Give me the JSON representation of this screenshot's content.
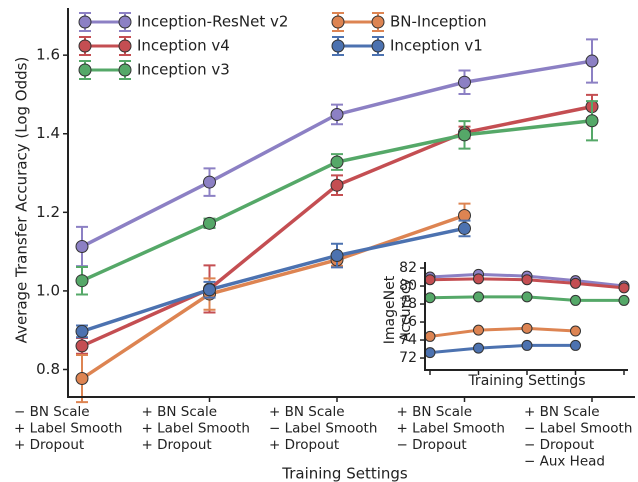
{
  "chart_data": [
    {
      "type": "line",
      "y_label": "Average Transfer Accuracy (Log Odds)",
      "x_label": "Training Settings",
      "categories": [
        [
          "− BN Scale",
          "+ Label Smooth",
          "+ Dropout"
        ],
        [
          "+ BN Scale",
          "+ Label Smooth",
          "+ Dropout"
        ],
        [
          "+ BN Scale",
          "− Label Smooth",
          "+ Dropout"
        ],
        [
          "+ BN Scale",
          "+ Label Smooth",
          "− Dropout"
        ],
        [
          "+ BN Scale",
          "− Label Smooth",
          "− Dropout",
          "− Aux Head"
        ]
      ],
      "ylim": [
        0.73,
        1.72
      ],
      "yticks": [
        {
          "value": 0.8,
          "label": "0.8"
        },
        {
          "value": 1.0,
          "label": "1.0"
        },
        {
          "value": 1.2,
          "label": "1.2"
        },
        {
          "value": 1.4,
          "label": "1.4"
        },
        {
          "value": 1.6,
          "label": "1.6"
        }
      ],
      "legend": "upper left",
      "series": [
        {
          "name": "Inception-ResNet v2",
          "color": "#8c80c4",
          "values": [
            1.113,
            1.277,
            1.449,
            1.531,
            1.585
          ],
          "errors": [
            0.05,
            0.035,
            0.025,
            0.03,
            0.055
          ]
        },
        {
          "name": "Inception v4",
          "color": "#c44e52",
          "values": [
            0.86,
            1.005,
            1.269,
            1.403,
            1.469
          ],
          "errors": [
            0.02,
            0.06,
            0.025,
            0.015,
            0.03
          ]
        },
        {
          "name": "Inception v3",
          "color": "#55a868",
          "values": [
            1.026,
            1.172,
            1.328,
            1.397,
            1.433
          ],
          "errors": [
            0.035,
            0.012,
            0.02,
            0.035,
            0.05
          ]
        },
        {
          "name": "BN-Inception",
          "color": "#dd8452",
          "values": [
            0.777,
            0.992,
            1.079,
            1.192,
            null
          ],
          "errors": [
            0.06,
            0.04,
            0.015,
            0.03,
            null
          ]
        },
        {
          "name": "Inception v1",
          "color": "#4c72b0",
          "values": [
            0.897,
            1.003,
            1.09,
            1.159,
            null
          ],
          "errors": [
            0.015,
            0.02,
            0.03,
            0.02,
            null
          ]
        }
      ]
    },
    {
      "type": "line",
      "y_label": [
        "ImageNet",
        "Accuracy"
      ],
      "x_label": "Training Settings",
      "ylim": [
        70.67,
        82.67
      ],
      "yticks": [
        72,
        74,
        76,
        78,
        80,
        82
      ],
      "series": [
        {
          "color": "#8c80c4",
          "values": [
            81.0,
            81.3,
            81.1,
            80.6,
            80.0
          ]
        },
        {
          "color": "#c44e52",
          "values": [
            80.7,
            80.8,
            80.7,
            80.3,
            79.8
          ]
        },
        {
          "color": "#55a868",
          "values": [
            78.7,
            78.8,
            78.8,
            78.4,
            78.4
          ]
        },
        {
          "color": "#dd8452",
          "values": [
            74.4,
            75.1,
            75.3,
            75.0,
            null
          ]
        },
        {
          "color": "#4c72b0",
          "values": [
            72.6,
            73.1,
            73.4,
            73.4,
            null
          ]
        }
      ]
    }
  ]
}
